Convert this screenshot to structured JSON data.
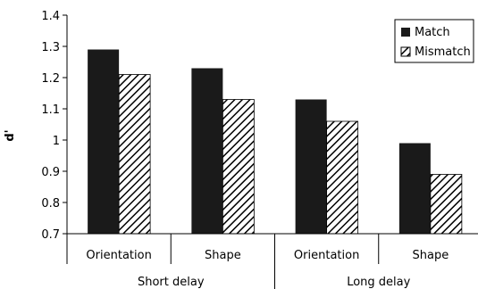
{
  "chart_data": {
    "type": "bar",
    "ylabel": "d'",
    "ylim": [
      0.7,
      1.4
    ],
    "yticks": [
      "0.7",
      "0.8",
      "0.9",
      "1",
      "1.1",
      "1.2",
      "1.3",
      "1.4"
    ],
    "categories": [
      "Orientation",
      "Shape",
      "Orientation",
      "Shape"
    ],
    "groups": [
      "Short delay",
      "Long delay"
    ],
    "series": [
      {
        "name": "Match",
        "values": [
          1.29,
          1.23,
          1.13,
          0.99
        ]
      },
      {
        "name": "Mismatch",
        "values": [
          1.21,
          1.13,
          1.06,
          0.89
        ]
      }
    ],
    "legend_position": "top-right",
    "grid": false,
    "colors": {
      "match": "#1a1a1a",
      "mismatch_pattern": "#000000",
      "axis": "#000000"
    }
  }
}
